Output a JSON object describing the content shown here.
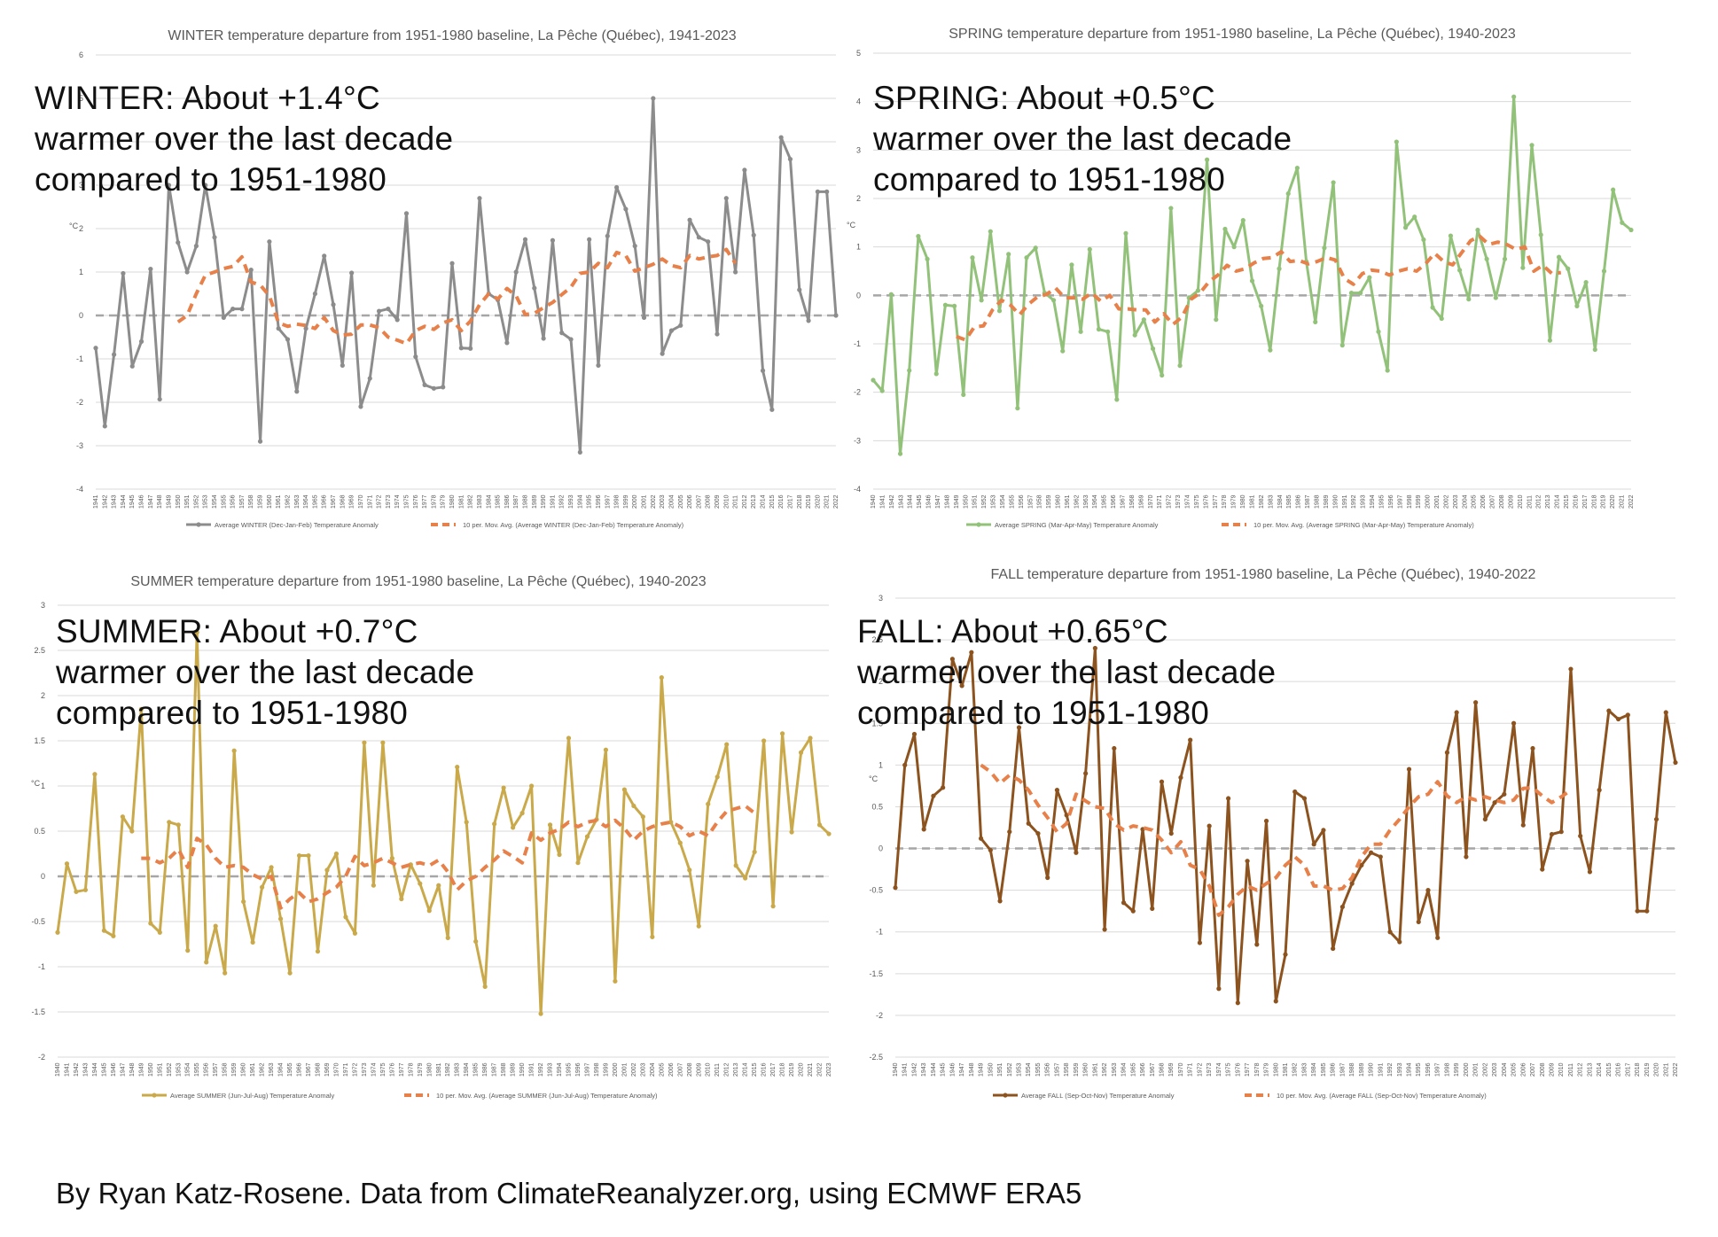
{
  "annotations": [
    {
      "line1": "WINTER: About +1.4°C",
      "line2": "warmer over the last decade",
      "line3": "compared to 1951-1980"
    },
    {
      "line1": "SPRING: About +0.5°C",
      "line2": "warmer over the last decade",
      "line3": "compared to 1951-1980"
    },
    {
      "line1": "SUMMER: About +0.7°C",
      "line2": "warmer over the last decade",
      "line3": "compared to 1951-1980"
    },
    {
      "line1": "FALL: About +0.65°C",
      "line2": "warmer over the last decade",
      "line3": "compared to 1951-1980"
    }
  ],
  "credit": "By Ryan Katz-Rosene. Data from ClimateReanalyzer.org, using ECMWF ERA5",
  "chart_data": [
    {
      "type": "line",
      "title": "WINTER temperature departure from 1951-1980 baseline, La Pêche (Québec), 1941-2023",
      "ylabel": "°C",
      "ylim": [
        -4,
        6
      ],
      "yticks": [
        -4,
        -3,
        -2,
        -1,
        0,
        1,
        2,
        3,
        4,
        5,
        6
      ],
      "x_start": 1941,
      "x_end": 2022,
      "colors": {
        "series": "#8c8c8c",
        "avg": "#e8804a"
      },
      "series_name": "Average WINTER (Dec-Jan-Feb) Temperature Anomaly",
      "avg_name": "10 per. Mov. Avg. (Average WINTER (Dec-Jan-Feb) Temperature Anomaly)",
      "values": [
        -0.75,
        -2.55,
        -0.9,
        0.97,
        -1.17,
        -0.6,
        1.07,
        -1.93,
        3.0,
        1.68,
        1.0,
        1.6,
        3.0,
        1.8,
        -0.05,
        0.15,
        0.15,
        1.05,
        -2.9,
        1.7,
        -0.3,
        -0.55,
        -1.75,
        -0.3,
        0.5,
        1.37,
        0.25,
        -1.15,
        0.98,
        -2.1,
        -1.45,
        0.1,
        0.15,
        -0.1,
        2.35,
        -0.95,
        -1.6,
        -1.68,
        -1.65,
        1.2,
        -0.75,
        -0.76,
        2.7,
        0.5,
        0.36,
        -0.63,
        1.0,
        1.75,
        0.63,
        -0.53,
        1.73,
        -0.4,
        -0.55,
        -3.15,
        1.75,
        -1.15,
        1.83,
        2.95,
        2.45,
        1.6,
        -0.05,
        5.0,
        -0.88,
        -0.35,
        -0.23,
        2.2,
        1.8,
        1.7,
        -0.43,
        2.7,
        1.0,
        3.35,
        1.85,
        -1.27,
        -2.17,
        4.1,
        3.6,
        0.59,
        -0.12,
        2.85,
        2.85,
        0.0
      ],
      "avg": [
        -0.15,
        0.0,
        0.5,
        0.93,
        1.0,
        1.08,
        1.13,
        1.35,
        0.77,
        0.7,
        0.45,
        -0.17,
        -0.25,
        -0.2,
        -0.23,
        -0.3,
        -0.05,
        -0.35,
        -0.45,
        -0.43,
        -0.22,
        -0.22,
        -0.28,
        -0.5,
        -0.57,
        -0.65,
        -0.35,
        -0.25,
        -0.32,
        -0.17,
        -0.1,
        -0.35,
        -0.13,
        0.25,
        0.5,
        0.38,
        0.62,
        0.45,
        0.02,
        0.05,
        0.18,
        0.3,
        0.48,
        0.65,
        0.97,
        1.0,
        1.2,
        1.1,
        1.45,
        1.38,
        1.02,
        1.1,
        1.18,
        1.3,
        1.15,
        1.1,
        1.38,
        1.3,
        1.35,
        1.38,
        1.52,
        1.2
      ],
      "avg_start": 1950
    },
    {
      "type": "line",
      "title": "SPRING temperature departure from 1951-1980 baseline, La Pêche (Québec), 1940-2023",
      "ylabel": "°C",
      "ylim": [
        -4,
        5
      ],
      "yticks": [
        -4,
        -3,
        -2,
        -1,
        0,
        1,
        2,
        3,
        4,
        5
      ],
      "x_start": 1940,
      "x_end": 2022,
      "colors": {
        "series": "#92c27a",
        "avg": "#e8804a"
      },
      "series_name": "Average SPRING (Mar-Apr-May) Temperature Anomaly",
      "avg_name": "10 per. Mov. Avg. (Average SPRING (Mar-Apr-May) Temperature Anomaly)",
      "values": [
        -1.75,
        -1.97,
        0.02,
        -3.27,
        -1.55,
        1.22,
        0.75,
        -1.62,
        -0.2,
        -0.22,
        -2.05,
        0.78,
        -0.1,
        1.32,
        -0.32,
        0.85,
        -2.33,
        0.78,
        0.98,
        0.05,
        -0.1,
        -1.15,
        0.63,
        -0.75,
        0.95,
        -0.7,
        -0.75,
        -2.15,
        1.28,
        -0.82,
        -0.5,
        -1.1,
        -1.65,
        1.8,
        -1.45,
        -0.05,
        0.1,
        2.8,
        -0.5,
        1.37,
        1.0,
        1.55,
        0.3,
        -0.22,
        -1.13,
        0.55,
        2.1,
        2.63,
        0.7,
        -0.55,
        0.98,
        2.33,
        -1.03,
        0.05,
        0.05,
        0.37,
        -0.75,
        -1.55,
        3.17,
        1.4,
        1.62,
        1.15,
        -0.25,
        -0.48,
        1.23,
        0.52,
        -0.08,
        1.35,
        0.75,
        -0.05,
        0.75,
        4.1,
        0.57,
        3.1,
        1.25,
        -0.93,
        0.79,
        0.55,
        -0.22,
        0.27,
        -1.12,
        0.5,
        2.18,
        1.5,
        1.35
      ],
      "avg": [
        -0.85,
        -0.92,
        -0.65,
        -0.63,
        -0.3,
        -0.1,
        -0.2,
        -0.4,
        -0.18,
        -0.03,
        0.02,
        0.15,
        -0.05,
        -0.05,
        -0.08,
        0.05,
        -0.12,
        0.0,
        -0.28,
        -0.28,
        -0.3,
        -0.3,
        -0.55,
        -0.38,
        -0.6,
        -0.45,
        -0.08,
        0.05,
        0.28,
        0.42,
        0.62,
        0.5,
        0.55,
        0.67,
        0.76,
        0.78,
        0.9,
        0.7,
        0.72,
        0.65,
        0.7,
        0.78,
        0.73,
        0.35,
        0.23,
        0.45,
        0.52,
        0.5,
        0.42,
        0.5,
        0.55,
        0.5,
        0.65,
        0.87,
        0.7,
        0.63,
        0.88,
        1.13,
        1.22,
        1.05,
        1.1,
        1.05,
        0.95,
        1.0,
        0.5,
        0.62,
        0.45,
        0.47
      ],
      "avg_start": 1949
    },
    {
      "type": "line",
      "title": "SUMMER temperature departure from 1951-1980 baseline, La Pêche (Québec), 1940-2023",
      "ylabel": "°C",
      "ylim": [
        -2,
        3
      ],
      "yticks": [
        -2,
        -1.5,
        -1,
        -0.5,
        0,
        0.5,
        1,
        1.5,
        2,
        2.5,
        3
      ],
      "x_start": 1940,
      "x_end": 2023,
      "colors": {
        "series": "#c9a94a",
        "avg": "#e8804a"
      },
      "series_name": "Average SUMMER (Jun-Jul-Aug) Temperature Anomaly",
      "avg_name": "10 per. Mov. Avg. (Average SUMMER (Jun-Jul-Aug) Temperature Anomaly)",
      "values": [
        -0.62,
        0.14,
        -0.17,
        -0.15,
        1.13,
        -0.6,
        -0.66,
        0.66,
        0.5,
        1.85,
        -0.52,
        -0.62,
        0.6,
        0.57,
        -0.82,
        2.7,
        -0.95,
        -0.55,
        -1.07,
        1.39,
        -0.28,
        -0.73,
        -0.12,
        0.1,
        -0.47,
        -1.07,
        0.23,
        0.23,
        -0.83,
        0.07,
        0.25,
        -0.45,
        -0.63,
        1.48,
        -0.1,
        1.48,
        0.2,
        -0.25,
        0.13,
        -0.08,
        -0.38,
        -0.1,
        -0.68,
        1.21,
        0.6,
        -0.72,
        -1.22,
        0.58,
        0.98,
        0.54,
        0.7,
        1.0,
        -1.52,
        0.57,
        0.24,
        1.53,
        0.15,
        0.44,
        0.63,
        1.4,
        -1.16,
        0.96,
        0.78,
        0.66,
        -0.67,
        2.2,
        0.6,
        0.37,
        0.07,
        -0.55,
        0.8,
        1.1,
        1.46,
        0.12,
        -0.02,
        0.27,
        1.5,
        -0.33,
        1.58,
        0.49,
        1.37,
        1.53,
        0.57,
        0.47
      ],
      "avg": [
        0.2,
        0.2,
        0.15,
        0.2,
        0.3,
        0.1,
        0.42,
        0.35,
        0.2,
        0.1,
        0.12,
        0.1,
        0.02,
        -0.03,
        0.0,
        -0.35,
        -0.25,
        -0.18,
        -0.28,
        -0.25,
        -0.18,
        -0.12,
        0.0,
        0.22,
        0.12,
        0.15,
        0.2,
        0.15,
        0.1,
        0.13,
        0.15,
        0.12,
        0.18,
        0.05,
        -0.15,
        -0.05,
        0.0,
        0.1,
        0.18,
        0.28,
        0.22,
        0.15,
        0.48,
        0.4,
        0.48,
        0.52,
        0.6,
        0.55,
        0.6,
        0.62,
        0.55,
        0.62,
        0.53,
        0.4,
        0.5,
        0.55,
        0.58,
        0.6,
        0.55,
        0.45,
        0.5,
        0.45,
        0.6,
        0.72,
        0.75,
        0.78,
        0.7
      ],
      "avg_start": 1949
    },
    {
      "type": "line",
      "title": "FALL temperature departure from 1951-1980 baseline, La Pêche (Québec), 1940-2022",
      "ylabel": "°C",
      "ylim": [
        -2.5,
        3
      ],
      "yticks": [
        -2.5,
        -2,
        -1.5,
        -1,
        -0.5,
        0,
        0.5,
        1,
        1.5,
        2,
        2.5,
        3
      ],
      "x_start": 1940,
      "x_end": 2022,
      "colors": {
        "series": "#8c531f",
        "avg": "#e8804a"
      },
      "series_name": "Average FALL (Sep-Oct-Nov) Temperature Anomaly",
      "avg_name": "10 per. Mov. Avg. (Average FALL (Sep-Oct-Nov) Temperature Anomaly)",
      "values": [
        -0.47,
        1.0,
        1.37,
        0.23,
        0.63,
        0.73,
        2.27,
        1.95,
        2.35,
        0.12,
        -0.02,
        -0.63,
        0.2,
        1.45,
        0.3,
        0.18,
        -0.35,
        0.7,
        0.4,
        -0.05,
        0.9,
        2.4,
        -0.97,
        1.2,
        -0.65,
        -0.75,
        0.23,
        -0.72,
        0.8,
        0.18,
        0.85,
        1.3,
        -1.13,
        0.27,
        -1.68,
        0.6,
        -1.85,
        -0.15,
        -1.15,
        0.33,
        -1.83,
        -1.27,
        0.68,
        0.6,
        0.05,
        0.22,
        -1.2,
        -0.7,
        -0.42,
        -0.2,
        -0.05,
        -0.1,
        -1.0,
        -1.12,
        0.95,
        -0.88,
        -0.5,
        -1.07,
        1.15,
        1.63,
        -0.1,
        1.75,
        0.35,
        0.55,
        0.65,
        1.5,
        0.28,
        1.2,
        -0.25,
        0.17,
        0.2,
        2.15,
        0.15,
        -0.28,
        0.7,
        1.65,
        1.55,
        1.6,
        -0.75,
        -0.75,
        0.35,
        1.63,
        1.03
      ],
      "avg": [
        1.0,
        0.92,
        0.78,
        0.88,
        0.82,
        0.7,
        0.52,
        0.37,
        0.2,
        0.3,
        0.65,
        0.57,
        0.5,
        0.48,
        0.3,
        0.22,
        0.27,
        0.25,
        0.22,
        0.1,
        -0.05,
        0.08,
        -0.2,
        -0.25,
        -0.45,
        -0.8,
        -0.7,
        -0.55,
        -0.45,
        -0.5,
        -0.42,
        -0.35,
        -0.2,
        -0.1,
        -0.2,
        -0.45,
        -0.45,
        -0.5,
        -0.48,
        -0.35,
        -0.1,
        0.05,
        0.05,
        0.22,
        0.35,
        0.5,
        0.62,
        0.65,
        0.8,
        0.63,
        0.55,
        0.62,
        0.58,
        0.62,
        0.58,
        0.55,
        0.58,
        0.72,
        0.73,
        0.63,
        0.55,
        0.62,
        0.7
      ],
      "avg_start": 1949
    }
  ]
}
